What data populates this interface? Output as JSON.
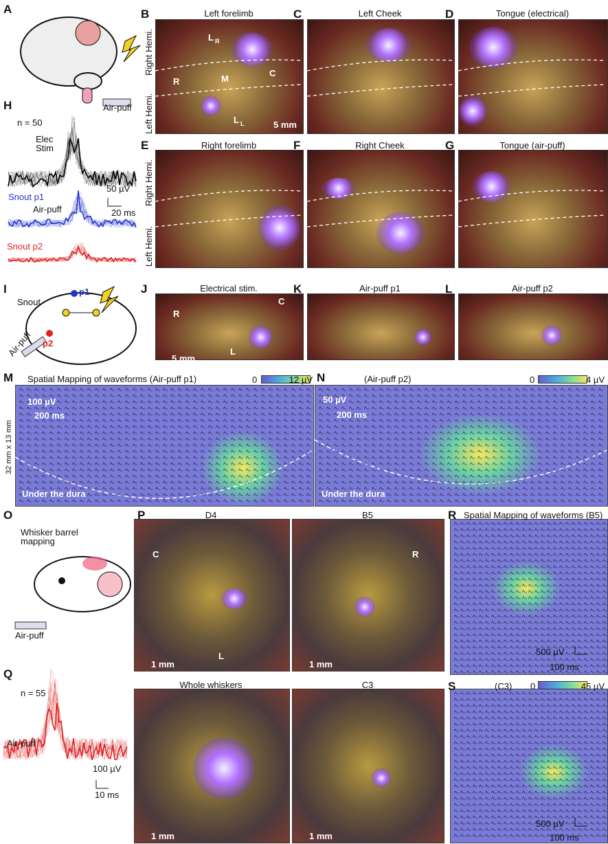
{
  "A": {
    "letter": "A",
    "air_puff": "Air-puff"
  },
  "H": {
    "letter": "H",
    "n": "n = 50",
    "elec_stim": "Elec Stim",
    "scale_v": "50 µV",
    "scale_t": "20 ms",
    "snout_p1": "Snout p1",
    "air_puff": "Air-puff",
    "snout_p2": "Snout p2"
  },
  "B": {
    "letter": "B",
    "title": "Left forelimb",
    "right_hemi": "Right Hemi.",
    "left_hemi": "Left Hemi.",
    "lr": "L",
    "lr_sub": "R",
    "m": "M",
    "c": "C",
    "r": "R",
    "ll": "L",
    "ll_sub": "L",
    "scale": "5 mm"
  },
  "C": {
    "letter": "C",
    "title": "Left Cheek"
  },
  "D": {
    "letter": "D",
    "title": "Tongue (electrical)"
  },
  "E": {
    "letter": "E",
    "title": "Right forelimb",
    "right_hemi": "Right Hemi.",
    "left_hemi": "Left Hemi."
  },
  "F": {
    "letter": "F",
    "title": "Right Cheek"
  },
  "G": {
    "letter": "G",
    "title": "Tongue (air-puff)"
  },
  "I": {
    "letter": "I",
    "snout": "Snout",
    "p1": "p1",
    "p2": "p2",
    "air_puff": "Air-puff"
  },
  "J": {
    "letter": "J",
    "title": "Electrical stim.",
    "r": "R",
    "c": "C",
    "l": "L",
    "scale": "5 mm"
  },
  "K": {
    "letter": "K",
    "title": "Air-puff p1"
  },
  "L": {
    "letter": "L",
    "title": "Air-puff p2"
  },
  "M": {
    "letter": "M",
    "title": "Spatial Mapping of waveforms (Air-puff p1)",
    "cbar_min": "0",
    "cbar_max": "12 µV",
    "scale_v": "100 µV",
    "scale_t": "200 ms",
    "size": "32 mm x 13 mm",
    "dura": "Under the dura"
  },
  "N": {
    "letter": "N",
    "title": "(Air-puff p2)",
    "cbar_min": "0",
    "cbar_max": "4 µV",
    "scale_v": "50 µV",
    "scale_t": "200 ms",
    "dura": "Under the dura"
  },
  "O": {
    "letter": "O",
    "title": "Whisker barrel mapping",
    "air_puff": "Air-puff"
  },
  "P": {
    "letter": "P",
    "d4": "D4",
    "b5": "B5",
    "whole": "Whole whiskers",
    "c3": "C3",
    "c": "C",
    "r": "R",
    "l": "L",
    "scale": "1 mm"
  },
  "Q": {
    "letter": "Q",
    "n": "n = 55",
    "air_puff": "Air-puff",
    "scale_v": "100 µV",
    "scale_t": "10 ms"
  },
  "R": {
    "letter": "R",
    "title": "Spatial Mapping of waveforms (B5)",
    "scale_v": "500 µV",
    "scale_t": "100 ms"
  },
  "S": {
    "letter": "S",
    "title": "(C3)",
    "cbar_min": "0",
    "cbar_max": "45 µV",
    "scale_v": "500 µV",
    "scale_t": "100 ms"
  }
}
